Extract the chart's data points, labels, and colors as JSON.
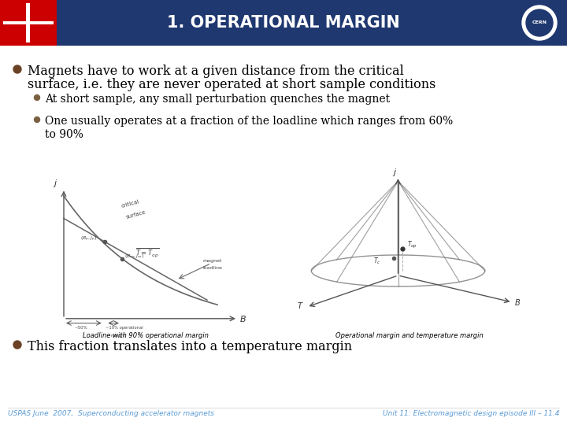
{
  "title": "1. OPERATIONAL MARGIN",
  "header_bg_color": "#1f3870",
  "header_text_color": "#ffffff",
  "slide_bg_color": "#ffffff",
  "bullet1_line1": "Magnets have to work at a given distance from the critical",
  "bullet1_line2": "surface, i.e. they are never operated at short sample conditions",
  "sub_bullet1": "At short sample, any small perturbation quenches the magnet",
  "sub_bullet2_line1": "One usually operates at a fraction of the loadline which ranges from 60%",
  "sub_bullet2_line2": "to 90%",
  "bullet2": "This fraction translates into a temperature margin",
  "caption_left": "Loadline with 90% operational margin",
  "caption_right": "Operational margin and temperature margin",
  "footer_left": "USPAS June  2007,  Superconducting accelerator magnets",
  "footer_right": "Unit 11: Electromagnetic design episode III – 11.4",
  "bullet_color_main": "#6b4226",
  "bullet_color_sub": "#7a6040",
  "text_color": "#000000",
  "footer_color": "#5b9bd5",
  "title_fontsize": 15,
  "main_bullet_fontsize": 11.5,
  "sub_bullet_fontsize": 10,
  "footer_fontsize": 6.5,
  "caption_fontsize": 6
}
